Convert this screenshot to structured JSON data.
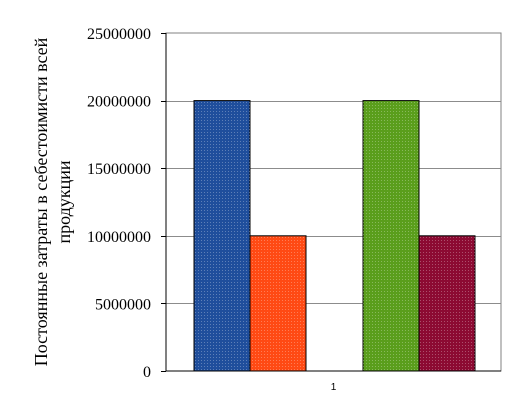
{
  "chart_data": {
    "type": "bar",
    "title": "",
    "xlabel": "",
    "ylabel_lines": [
      "Постоянные затраты в себестоимисти всей",
      "продукции"
    ],
    "categories": [
      "1"
    ],
    "ylim": [
      0,
      25000000
    ],
    "yticks": [
      0,
      5000000,
      10000000,
      15000000,
      20000000,
      25000000
    ],
    "ytick_labels": [
      "0",
      "5000000",
      "10000000",
      "15000000",
      "20000000",
      "25000000"
    ],
    "grid": true,
    "legend": "none",
    "series": [
      {
        "values": [
          20000000
        ],
        "color": "#1f4e9c"
      },
      {
        "values": [
          10000000
        ],
        "color": "#ff4a14"
      },
      {
        "values": [
          20000000
        ],
        "color": "#5a9e1c"
      },
      {
        "values": [
          10000000
        ],
        "color": "#8c0a32"
      }
    ]
  }
}
